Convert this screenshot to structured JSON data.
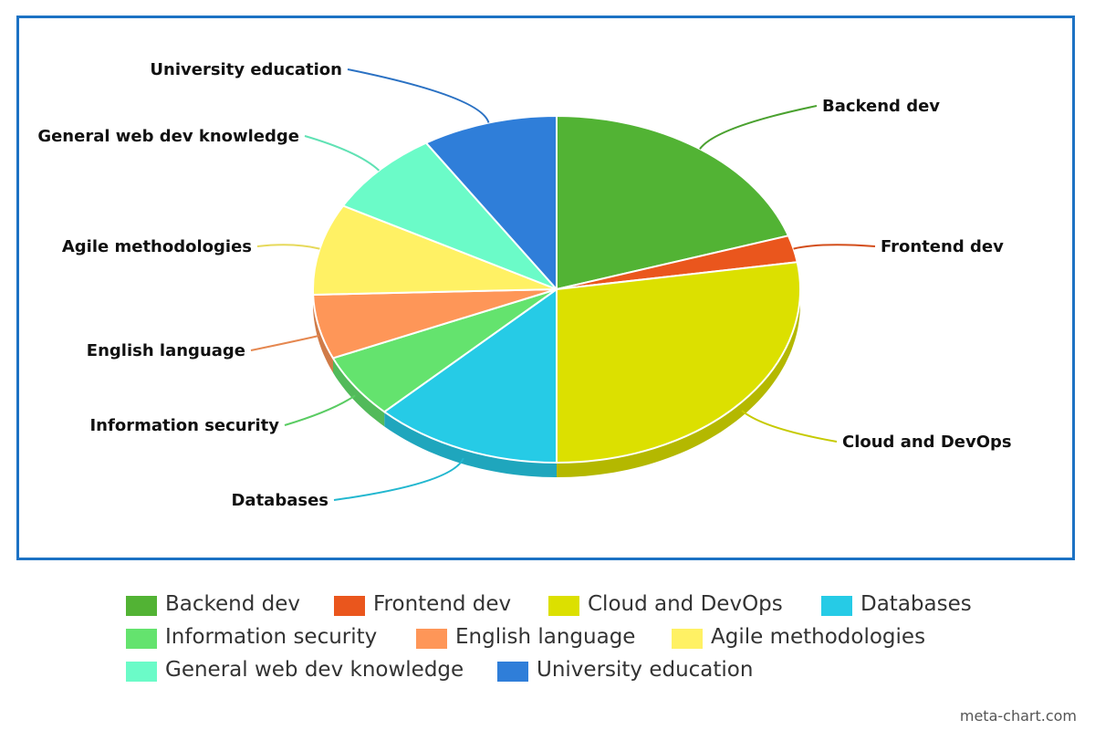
{
  "chart_data": {
    "type": "pie",
    "title": "",
    "slices": [
      {
        "label": "Backend dev",
        "value": 20,
        "color": "#52b334"
      },
      {
        "label": "Frontend dev",
        "value": 2.5,
        "color": "#ea561d"
      },
      {
        "label": "Cloud and DevOps",
        "value": 27.5,
        "color": "#dce000"
      },
      {
        "label": "Databases",
        "value": 12.5,
        "color": "#26cbe6"
      },
      {
        "label": "Information security",
        "value": 6,
        "color": "#64e36e"
      },
      {
        "label": "English language",
        "value": 6,
        "color": "#fe9658"
      },
      {
        "label": "Agile methodologies",
        "value": 8.5,
        "color": "#fff164"
      },
      {
        "label": "General web dev knowledge",
        "value": 8,
        "color": "#6bfbc8"
      },
      {
        "label": "University education",
        "value": 9,
        "color": "#2f7ed9"
      }
    ],
    "legend_position": "bottom"
  },
  "colors": {
    "frame_border": "#1c72c4"
  },
  "watermark": "meta-chart.com"
}
